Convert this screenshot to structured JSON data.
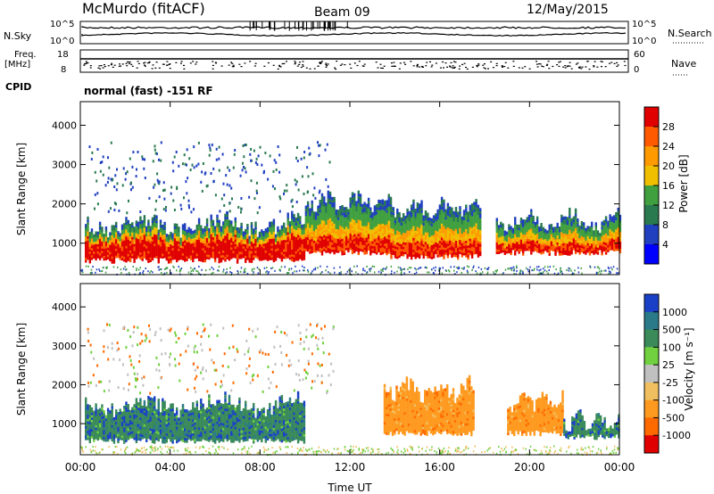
{
  "header": {
    "station": "McMurdo (fitACF)",
    "beam": "Beam 09",
    "date": "12/May/2015"
  },
  "strip_labels": {
    "nsky": "N.Sky",
    "nsearch": "N.Search",
    "freq_line1": "Freq.",
    "freq_line2": "[MHz]",
    "nave": "Nave",
    "cpid": "CPID",
    "cpid_value": "normal (fast) -151 RF",
    "noise_ticks_left": [
      "10^5",
      "10^0"
    ],
    "noise_ticks_right": [
      "10^5",
      "10^0"
    ],
    "freq_ticks": [
      "18",
      "8"
    ],
    "nave_ticks": [
      "60",
      "0"
    ]
  },
  "chart_data": [
    {
      "type": "heatmap",
      "panel": "power",
      "ylabel": "Slant Range [km]",
      "y_ticks": [
        1000,
        2000,
        3000,
        4000
      ],
      "ylim": [
        200,
        4600
      ],
      "xlim": [
        0,
        24
      ],
      "colorbar_label": "Power [dB]",
      "colorbar_ticks": [
        "28",
        "24",
        "20",
        "16",
        "12",
        "8",
        "4"
      ],
      "colorbar_colors": [
        "#e00000",
        "#ff5a00",
        "#ff9a00",
        "#f0c000",
        "#40a040",
        "#2a7a50",
        "#2040c0",
        "#0000ff"
      ],
      "echo_regions_hours_km": [
        {
          "x0": 0.2,
          "x1": 10.0,
          "y0": 500,
          "y1": 1800,
          "level": "strong"
        },
        {
          "x0": 10.0,
          "x1": 13.8,
          "y0": 700,
          "y1": 2400,
          "level": "medium"
        },
        {
          "x0": 13.8,
          "x1": 17.8,
          "y0": 600,
          "y1": 2200,
          "level": "medium"
        },
        {
          "x0": 18.5,
          "x1": 24.0,
          "y0": 700,
          "y1": 1900,
          "level": "medium"
        }
      ]
    },
    {
      "type": "heatmap",
      "panel": "velocity",
      "ylabel": "Slant Range [km]",
      "xlabel": "Time UT",
      "x_ticks": [
        "00:00",
        "04:00",
        "08:00",
        "12:00",
        "16:00",
        "20:00",
        "00:00"
      ],
      "y_ticks": [
        1000,
        2000,
        3000,
        4000
      ],
      "ylim": [
        200,
        4600
      ],
      "xlim": [
        0,
        24
      ],
      "colorbar_label": "Velocity [m s⁻¹]",
      "colorbar_ticks": [
        "1000",
        "500",
        "100",
        "25",
        "-25",
        "-100",
        "-500",
        "-1000"
      ],
      "colorbar_colors": [
        "#1a40c8",
        "#2a7a8a",
        "#3a8a5a",
        "#70d040",
        "#c0c0c0",
        "#f0c060",
        "#ff9a20",
        "#ff6a00",
        "#e00000"
      ],
      "echo_regions_hours_km": [
        {
          "x0": 0.2,
          "x1": 10.0,
          "y0": 500,
          "y1": 1800,
          "level": "positive"
        },
        {
          "x0": 13.5,
          "x1": 17.5,
          "y0": 700,
          "y1": 2200,
          "level": "negative"
        },
        {
          "x0": 19.0,
          "x1": 21.5,
          "y0": 700,
          "y1": 1900,
          "level": "negative"
        },
        {
          "x0": 21.5,
          "x1": 24.0,
          "y0": 600,
          "y1": 1400,
          "level": "positive"
        }
      ]
    }
  ]
}
